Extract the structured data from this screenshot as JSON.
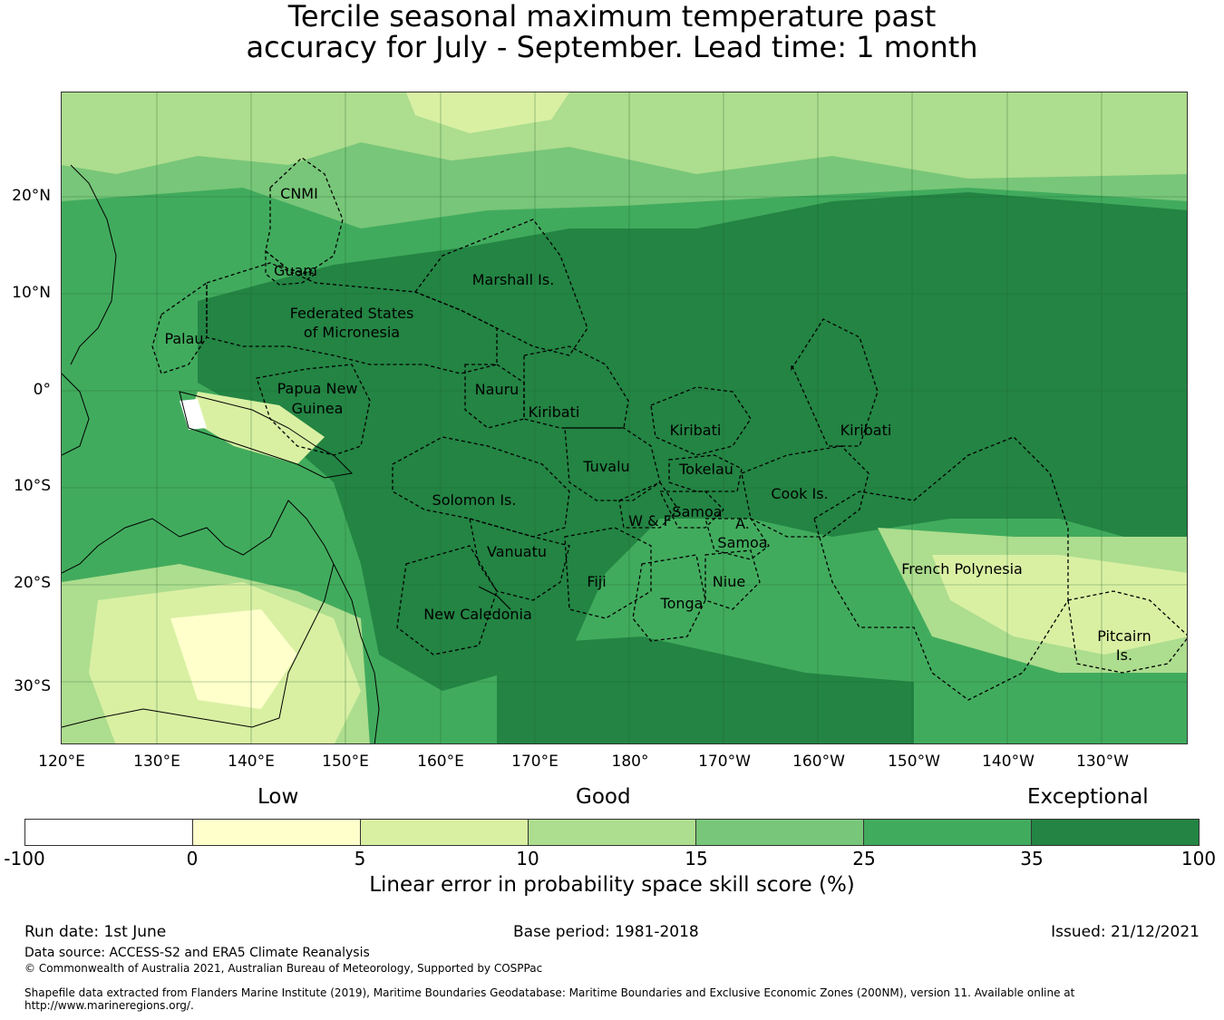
{
  "title": {
    "line1": "Tercile seasonal maximum temperature past",
    "line2": "accuracy for July - September. Lead time: 1 month"
  },
  "map": {
    "lon_labels": [
      "120°E",
      "130°E",
      "140°E",
      "150°E",
      "160°E",
      "170°E",
      "180°",
      "170°W",
      "160°W",
      "150°W",
      "140°W",
      "130°W"
    ],
    "lat_labels": [
      "20°N",
      "10°N",
      "0°",
      "10°S",
      "20°S",
      "30°S"
    ],
    "regions": [
      {
        "name": "CNMI",
        "lines": [
          "CNMI"
        ]
      },
      {
        "name": "Guam",
        "lines": [
          "Guam"
        ]
      },
      {
        "name": "Marshall Is.",
        "lines": [
          "Marshall Is."
        ]
      },
      {
        "name": "Federated States of Micronesia",
        "lines": [
          "Federated States",
          "of Micronesia"
        ]
      },
      {
        "name": "Palau",
        "lines": [
          "Palau"
        ]
      },
      {
        "name": "Papua New Guinea",
        "lines": [
          "Papua New",
          "Guinea"
        ]
      },
      {
        "name": "Nauru",
        "lines": [
          "Nauru"
        ]
      },
      {
        "name": "Kiribati (Gilbert)",
        "lines": [
          "Kiribati"
        ]
      },
      {
        "name": "Kiribati (Phoenix)",
        "lines": [
          "Kiribati"
        ]
      },
      {
        "name": "Kiribati (Line)",
        "lines": [
          "Kiribati"
        ]
      },
      {
        "name": "Tuvalu",
        "lines": [
          "Tuvalu"
        ]
      },
      {
        "name": "Tokelau",
        "lines": [
          "Tokelau"
        ]
      },
      {
        "name": "Solomon Is.",
        "lines": [
          "Solomon Is."
        ]
      },
      {
        "name": "Cook Is.",
        "lines": [
          "Cook Is."
        ]
      },
      {
        "name": "W & F",
        "lines": [
          "W & F"
        ]
      },
      {
        "name": "Samoa",
        "lines": [
          "Samoa"
        ]
      },
      {
        "name": "A. Samoa",
        "lines": [
          "A.",
          "Samoa"
        ]
      },
      {
        "name": "Vanuatu",
        "lines": [
          "Vanuatu"
        ]
      },
      {
        "name": "Fiji",
        "lines": [
          "Fiji"
        ]
      },
      {
        "name": "Niue",
        "lines": [
          "Niue"
        ]
      },
      {
        "name": "Tonga",
        "lines": [
          "Tonga"
        ]
      },
      {
        "name": "New Caledonia",
        "lines": [
          "New Caledonia"
        ]
      },
      {
        "name": "French Polynesia",
        "lines": [
          "French Polynesia"
        ]
      },
      {
        "name": "Pitcairn Is.",
        "lines": [
          "Pitcairn",
          "Is."
        ]
      }
    ]
  },
  "legend": {
    "category_low": "Low",
    "category_good": "Good",
    "category_exceptional": "Exceptional",
    "colors": [
      "#ffffff",
      "#ffffcc",
      "#d9f0a3",
      "#addd8e",
      "#78c679",
      "#41ab5d",
      "#238443"
    ],
    "ticks": [
      "-100",
      "0",
      "5",
      "10",
      "15",
      "25",
      "35",
      "100"
    ],
    "label": "Linear error in probability space skill score (%)"
  },
  "footer": {
    "run_date": "Run date: 1st June",
    "base_period": "Base period: 1981-2018",
    "issued": "Issued: 21/12/2021",
    "data_source": "Data source: ACCESS-S2 and ERA5 Climate Reanalysis",
    "copyright": "© Commonwealth of Australia 2021, Australian Bureau of Meteorology, Supported by COSPPac",
    "shapefile_line1": "Shapefile data extracted from Flanders Marine Institute (2019), Maritime Boundaries Geodatabase: Maritime Boundaries and Exclusive Economic Zones (200NM), version 11. Available online at",
    "shapefile_line2": "http://www.marineregions.org/."
  }
}
